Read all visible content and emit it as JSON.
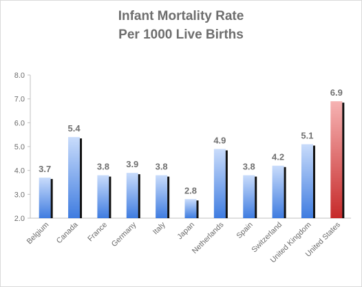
{
  "chart_data": {
    "type": "bar",
    "title_line1": "Infant Mortality Rate",
    "title_line2": "Per 1000  Live Births",
    "categories": [
      "Belgium",
      "Canada",
      "France",
      "Germany",
      "Italy",
      "Japan",
      "Netherlands",
      "Spain",
      "Switzerland",
      "United Kingdom",
      "United States"
    ],
    "values": [
      3.7,
      5.4,
      3.8,
      3.9,
      3.8,
      2.8,
      4.9,
      3.8,
      4.2,
      5.1,
      6.9
    ],
    "value_labels": [
      "3.7",
      "5.4",
      "3.8",
      "3.9",
      "3.8",
      "2.8",
      "4.9",
      "3.8",
      "4.2",
      "5.1",
      "6.9"
    ],
    "ylim": [
      2.0,
      8.0
    ],
    "yticks": [
      "2.0",
      "3.0",
      "4.0",
      "5.0",
      "6.0",
      "7.0",
      "8.0"
    ],
    "highlighted_category": "United States",
    "grid": false,
    "legend": "none",
    "colors": {
      "bar_top": "#c9dcfb",
      "bar_bottom": "#3f7ce0",
      "highlight_top": "#f6b3b3",
      "highlight_bottom": "#c62a2a",
      "bar_shadow": "#111111",
      "axis": "#bfbfbf",
      "text": "#6b6b6b"
    }
  }
}
